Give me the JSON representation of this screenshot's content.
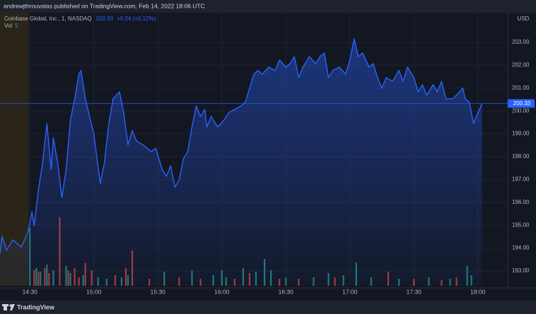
{
  "chart_data": {
    "type": "line",
    "header": "andrewjthrouvalas published on TradingView.com, Feb 14, 2022 18:06 UTC",
    "last_price": 200.33,
    "change": "+0.24 (+0.12%)",
    "volume_label": "Vol",
    "volume_value": 5,
    "currency": "USD",
    "branding": "TradingView",
    "grid": true,
    "xlim": [
      856,
      1094
    ],
    "xticks": [
      {
        "value": 870,
        "label": "14:30"
      },
      {
        "value": 900,
        "label": "15:00"
      },
      {
        "value": 930,
        "label": "15:30"
      },
      {
        "value": 960,
        "label": "16:00"
      },
      {
        "value": 990,
        "label": "16:30"
      },
      {
        "value": 1020,
        "label": "17:00"
      },
      {
        "value": 1050,
        "label": "17:30"
      },
      {
        "value": 1080,
        "label": "18:00"
      }
    ],
    "ylim": [
      192.35,
      204.3
    ],
    "yticks": [
      {
        "value": 193,
        "label": "193.00"
      },
      {
        "value": 194,
        "label": "194.00"
      },
      {
        "value": 195,
        "label": "195.00"
      },
      {
        "value": 196,
        "label": "196.00"
      },
      {
        "value": 197,
        "label": "197.00"
      },
      {
        "value": 198,
        "label": "198.00"
      },
      {
        "value": 199,
        "label": "199.00"
      },
      {
        "value": 200,
        "label": "200.00"
      },
      {
        "value": 201,
        "label": "201.00"
      },
      {
        "value": 202,
        "label": "202.00"
      },
      {
        "value": 203,
        "label": "203.00"
      }
    ],
    "series": [
      {
        "name": "Coinbase Global, Inc., 1, NASDAQ",
        "color": "#2962ff",
        "x": [
          856,
          857,
          859,
          862,
          866,
          869,
          871,
          872,
          874,
          876,
          878,
          880,
          881,
          883,
          885,
          887,
          889,
          891,
          893,
          894,
          896,
          898,
          900,
          903,
          905,
          907,
          909,
          912,
          914,
          916,
          918,
          920,
          923,
          927,
          929,
          932,
          934,
          936,
          938,
          940,
          942,
          944,
          946,
          948,
          950,
          952,
          953,
          955,
          958,
          961,
          963,
          966,
          969,
          971,
          973,
          975,
          977,
          979,
          982,
          985,
          987,
          990,
          992,
          994,
          996,
          998,
          1001,
          1004,
          1006,
          1008,
          1010,
          1012,
          1015,
          1018,
          1020,
          1022,
          1024,
          1026,
          1029,
          1031,
          1033,
          1035,
          1037,
          1040,
          1043,
          1045,
          1047,
          1050,
          1052,
          1054,
          1056,
          1059,
          1061,
          1063,
          1065,
          1068,
          1070,
          1073,
          1074,
          1076,
          1078,
          1080,
          1082
        ],
        "values": [
          193.74,
          194.51,
          193.9,
          194.36,
          194.05,
          194.67,
          195.59,
          194.98,
          196.52,
          197.75,
          199.45,
          197.44,
          198.83,
          197.75,
          196.21,
          197.44,
          199.6,
          200.53,
          201.61,
          201.77,
          200.53,
          199.76,
          198.99,
          196.83,
          197.75,
          199.45,
          200.53,
          200.84,
          199.91,
          198.52,
          199.14,
          198.68,
          198.52,
          198.22,
          198.37,
          197.44,
          197.14,
          197.6,
          196.67,
          196.98,
          197.91,
          198.22,
          199.3,
          200.22,
          199.76,
          200.07,
          199.3,
          199.76,
          199.3,
          199.6,
          199.91,
          200.07,
          200.22,
          200.38,
          201.0,
          201.61,
          201.77,
          201.61,
          201.92,
          201.77,
          202.23,
          201.92,
          202.07,
          202.38,
          201.46,
          201.92,
          202.38,
          202.07,
          202.38,
          202.54,
          201.46,
          201.77,
          201.92,
          201.61,
          202.23,
          203.15,
          202.38,
          202.54,
          201.92,
          202.07,
          201.46,
          201.0,
          201.46,
          201.3,
          201.77,
          201.3,
          201.92,
          201.46,
          200.84,
          201.15,
          200.69,
          201.15,
          200.84,
          201.3,
          200.53,
          200.53,
          200.69,
          201.0,
          200.53,
          200.38,
          199.45,
          199.91,
          200.33
        ]
      }
    ],
    "volume": {
      "ylim": [
        0,
        100
      ],
      "up": {
        "color": "#1f7a70",
        "x": [
          870,
          873,
          875,
          878,
          881,
          887,
          889,
          895,
          902,
          906,
          913,
          916,
          933,
          946,
          956,
          960,
          962,
          970,
          976,
          980,
          983,
          990,
          1003,
          1010,
          1017,
          1023,
          1030,
          1043,
          1057,
          1067,
          1075,
          1077
        ],
        "values": [
          82,
          25,
          20,
          30,
          22,
          28,
          18,
          15,
          12,
          10,
          12,
          15,
          20,
          22,
          15,
          22,
          12,
          25,
          20,
          38,
          22,
          12,
          12,
          18,
          15,
          33,
          12,
          10,
          12,
          10,
          28,
          15
        ]
      },
      "down": {
        "color": "#a8393b",
        "x": [
          872,
          874,
          877,
          879,
          884,
          888,
          891,
          893,
          896,
          899,
          910,
          915,
          918,
          926,
          940,
          950,
          966,
          973,
          987,
          996,
          1013,
          1038,
          1050,
          1063,
          1070
        ],
        "values": [
          22,
          20,
          25,
          18,
          97,
          22,
          25,
          12,
          32,
          22,
          15,
          25,
          50,
          10,
          12,
          10,
          10,
          18,
          10,
          10,
          12,
          20,
          10,
          8,
          12
        ]
      }
    }
  }
}
